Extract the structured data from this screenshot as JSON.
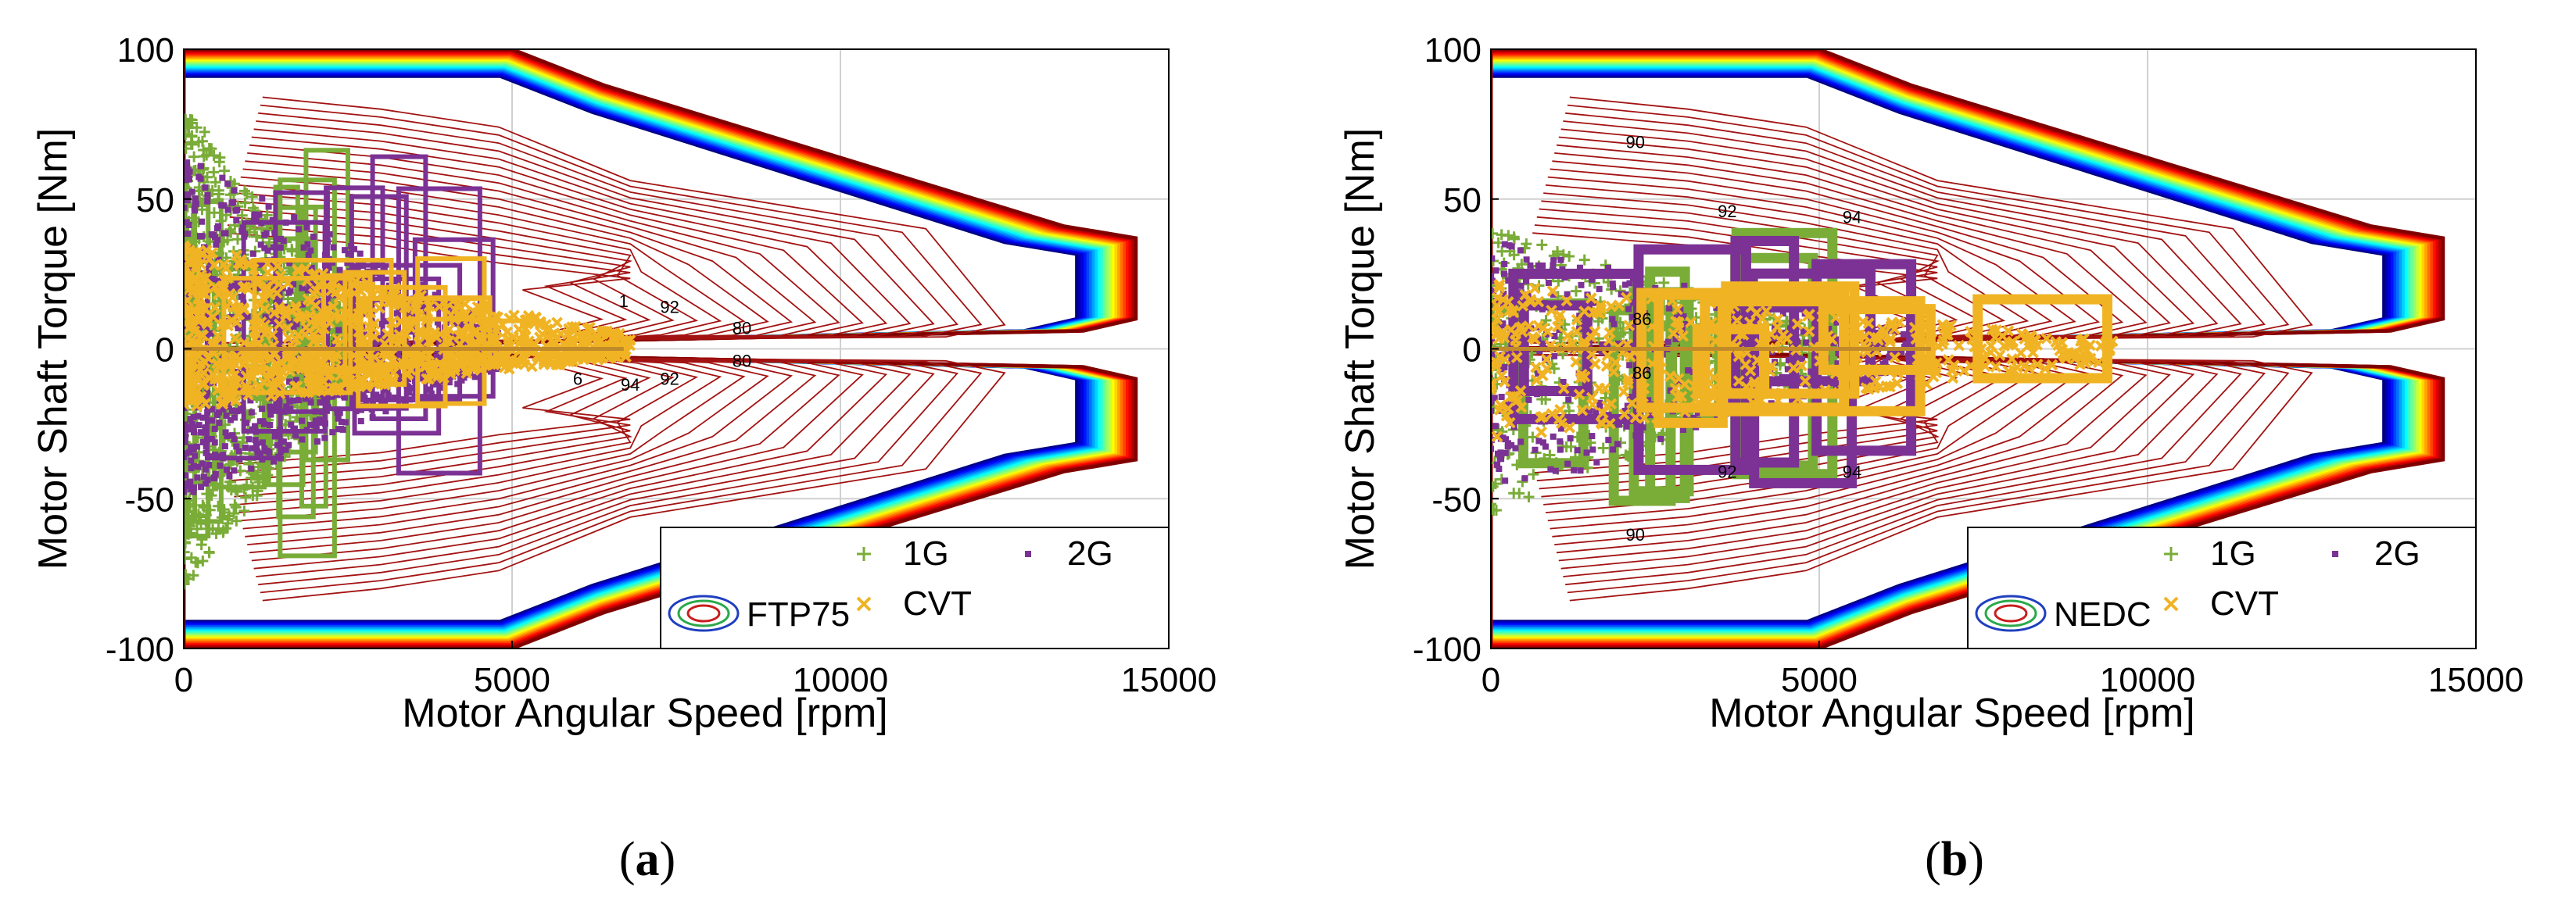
{
  "figure": {
    "panel_a_label_parts": [
      "(",
      "a",
      ")"
    ],
    "panel_b_label_parts": [
      "(",
      "b",
      ")"
    ]
  },
  "chart_data": [
    {
      "type": "contour+scatter",
      "panel": "a",
      "xlabel": "Motor Angular Speed [rpm]",
      "ylabel": "Motor Shaft Torque [Nm]",
      "xlim": [
        0,
        15000
      ],
      "ylim": [
        -100,
        100
      ],
      "xticks": [
        0,
        5000,
        10000,
        15000
      ],
      "yticks": [
        -100,
        -50,
        0,
        50,
        100
      ],
      "grid": true,
      "drive_cycle": "FTP75",
      "legend": [
        "FTP75",
        "1G",
        "CVT",
        "2G"
      ],
      "legend_position": "bottom-right",
      "contour_labels": [
        {
          "text": "80",
          "x": 8500,
          "y": 5
        },
        {
          "text": "80",
          "x": 8500,
          "y": -6
        },
        {
          "text": "92",
          "x": 7400,
          "y": 12
        },
        {
          "text": "94",
          "x": 6800,
          "y": -14
        },
        {
          "text": "92",
          "x": 7400,
          "y": -12
        },
        {
          "text": "1",
          "x": 6700,
          "y": 14
        },
        {
          "text": "6",
          "x": 6000,
          "y": -12
        }
      ],
      "efficiency_envelope": {
        "corner_speed": 5000,
        "max_speed": 14500,
        "max_torque": 100,
        "base_speed_torque": 35
      },
      "series": [
        {
          "name": "1G",
          "color": "#7aac38",
          "marker": "+",
          "speed_range": [
            0,
            2500
          ],
          "torque_range": [
            -80,
            82
          ]
        },
        {
          "name": "2G",
          "color": "#7b3294",
          "marker": ".",
          "speed_range": [
            0,
            4800
          ],
          "torque_range": [
            -50,
            65
          ]
        },
        {
          "name": "CVT",
          "color": "#f0b323",
          "marker": "x",
          "speed_range": [
            0,
            6800
          ],
          "torque_range": [
            -20,
            35
          ]
        }
      ]
    },
    {
      "type": "contour+scatter",
      "panel": "b",
      "xlabel": "Motor Angular Speed [rpm]",
      "ylabel": "Motor Shaft Torque [Nm]",
      "xlim": [
        0,
        15000
      ],
      "ylim": [
        -100,
        100
      ],
      "xticks": [
        0,
        5000,
        10000,
        15000
      ],
      "yticks": [
        -100,
        -50,
        0,
        50,
        100
      ],
      "grid": true,
      "drive_cycle": "NEDC",
      "legend": [
        "NEDC",
        "1G",
        "CVT",
        "2G"
      ],
      "legend_position": "bottom-right",
      "contour_labels": [
        {
          "text": "90",
          "x": 2200,
          "y": 67
        },
        {
          "text": "92",
          "x": 3600,
          "y": 44
        },
        {
          "text": "94",
          "x": 5500,
          "y": 42
        },
        {
          "text": "92",
          "x": 3600,
          "y": -43
        },
        {
          "text": "94",
          "x": 5500,
          "y": -43
        },
        {
          "text": "90",
          "x": 2200,
          "y": -64
        },
        {
          "text": "86",
          "x": 2300,
          "y": -10
        },
        {
          "text": "86",
          "x": 2300,
          "y": 8
        }
      ],
      "efficiency_envelope": {
        "corner_speed": 5000,
        "max_speed": 14500,
        "max_torque": 100,
        "base_speed_torque": 35
      },
      "series": [
        {
          "name": "1G",
          "color": "#7aac38",
          "marker": "+",
          "speed_range": [
            0,
            5200
          ],
          "torque_range": [
            -55,
            40
          ]
        },
        {
          "name": "2G",
          "color": "#7b3294",
          "marker": ".",
          "speed_range": [
            0,
            6400
          ],
          "torque_range": [
            -50,
            36
          ]
        },
        {
          "name": "CVT",
          "color": "#f0b323",
          "marker": "*",
          "speed_range": [
            0,
            9500
          ],
          "torque_range": [
            -30,
            22
          ]
        }
      ]
    }
  ]
}
